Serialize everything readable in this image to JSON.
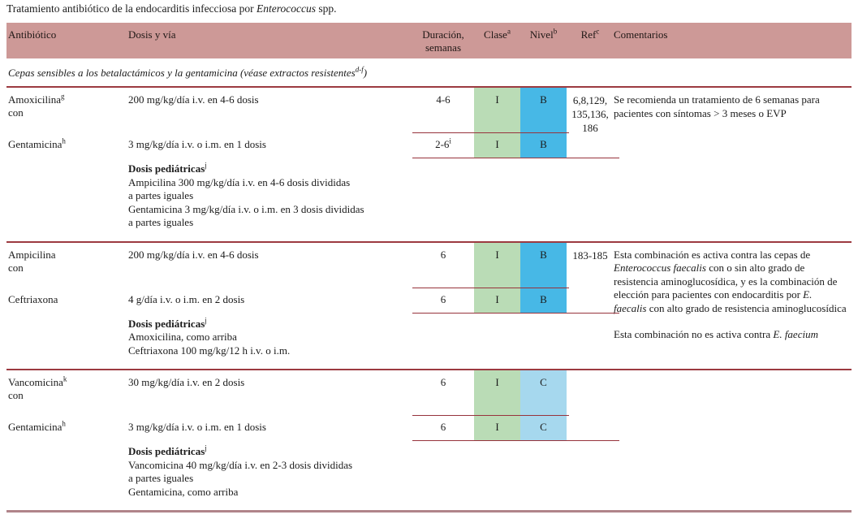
{
  "title": {
    "text_before": "Tratamiento antibiótico de la endocarditis infecciosa por ",
    "italic": "Enterococcus",
    "text_after": " spp."
  },
  "header": {
    "bg_color": "#cd9997",
    "antibiotico": "Antibiótico",
    "dosis": "Dosis y vía",
    "duracion": "Duración,\nsemanas",
    "clase": "Clase",
    "clase_sup": "a",
    "nivel": "Nivel",
    "nivel_sup": "b",
    "ref": "Ref",
    "ref_sup": "c",
    "comentarios": "Comentarios"
  },
  "section_header": {
    "text": "Cepas sensibles a los betalactámicos y la gentamicina (véase extractos resistentes",
    "sup": "d-f",
    "close": ")"
  },
  "colors": {
    "clase_bg": "#badcb6",
    "nivel_b_bg": "#47b8e6",
    "nivel_c_bg": "#a6d8ee",
    "rule_red": "#97333c",
    "block_rule": "#9c3a40",
    "bottom_rule": "#b0848a"
  },
  "blocks": [
    {
      "row1": {
        "drug": "Amoxicilina",
        "drug_sup": "g",
        "conjunction": "con",
        "dose": "200 mg/kg/día i.v. en 4-6 dosis",
        "duration": "4-6",
        "duration_sup": "",
        "clase": "I",
        "nivel": "B"
      },
      "row2": {
        "drug": "Gentamicina",
        "drug_sup": "h",
        "dose": "3 mg/kg/día i.v. o i.m. en 1 dosis",
        "duration": "2-6",
        "duration_sup": "i",
        "clase": "I",
        "nivel": "B"
      },
      "ref": "6,8,129,\n135,136,\n186",
      "pediatric": {
        "heading": "Dosis pediátricas",
        "heading_sup": "j",
        "lines": "Ampicilina 300 mg/kg/día i.v. en 4-6 dosis divididas\na partes iguales\nGentamicina 3 mg/kg/día i.v. o i.m. en 3 dosis divididas\na partes iguales"
      },
      "comment": "Se recomienda un tratamiento de 6 semanas para pacientes con síntomas > 3 meses o EVP"
    },
    {
      "row1": {
        "drug": "Ampicilina",
        "drug_sup": "",
        "conjunction": "con",
        "dose": "200 mg/kg/día i.v. en 4-6 dosis",
        "duration": "6",
        "duration_sup": "",
        "clase": "I",
        "nivel": "B"
      },
      "row2": {
        "drug": "Ceftriaxona",
        "drug_sup": "",
        "dose": "4 g/día i.v. o i.m. en 2 dosis",
        "duration": "6",
        "duration_sup": "",
        "clase": "I",
        "nivel": "B"
      },
      "ref": "183-185",
      "pediatric": {
        "heading": "Dosis pediátricas",
        "heading_sup": "j",
        "lines": "Amoxicilina, como arriba\nCeftriaxona 100 mg/kg/12 h i.v. o i.m."
      },
      "comment_p1a": "Esta combinación es activa contra las cepas de ",
      "comment_p1b_italic": "Enterococcus faecalis",
      "comment_p1c": " con o sin alto grado de resistencia aminoglucosídica, y es la combinación de elección para pacientes con endocarditis por ",
      "comment_p1d_italic": "E. faecalis",
      "comment_p1e": " con alto grado de resistencia aminoglucosídica",
      "comment_p2a": "Esta combinación no es activa contra ",
      "comment_p2b_italic": "E. faecium"
    },
    {
      "row1": {
        "drug": "Vancomicina",
        "drug_sup": "k",
        "conjunction": "con",
        "dose": "30 mg/kg/día i.v. en 2 dosis",
        "duration": "6",
        "duration_sup": "",
        "clase": "I",
        "nivel": "C"
      },
      "row2": {
        "drug": "Gentamicina",
        "drug_sup": "h",
        "dose": "3 mg/kg/día i.v. o i.m. en 1 dosis",
        "duration": "6",
        "duration_sup": "",
        "clase": "I",
        "nivel": "C"
      },
      "ref": "",
      "pediatric": {
        "heading": "Dosis pediátricas",
        "heading_sup": "j",
        "lines": "Vancomicina 40 mg/kg/día i.v. en 2-3 dosis divididas\na partes iguales\nGentamicina, como arriba"
      }
    }
  ]
}
